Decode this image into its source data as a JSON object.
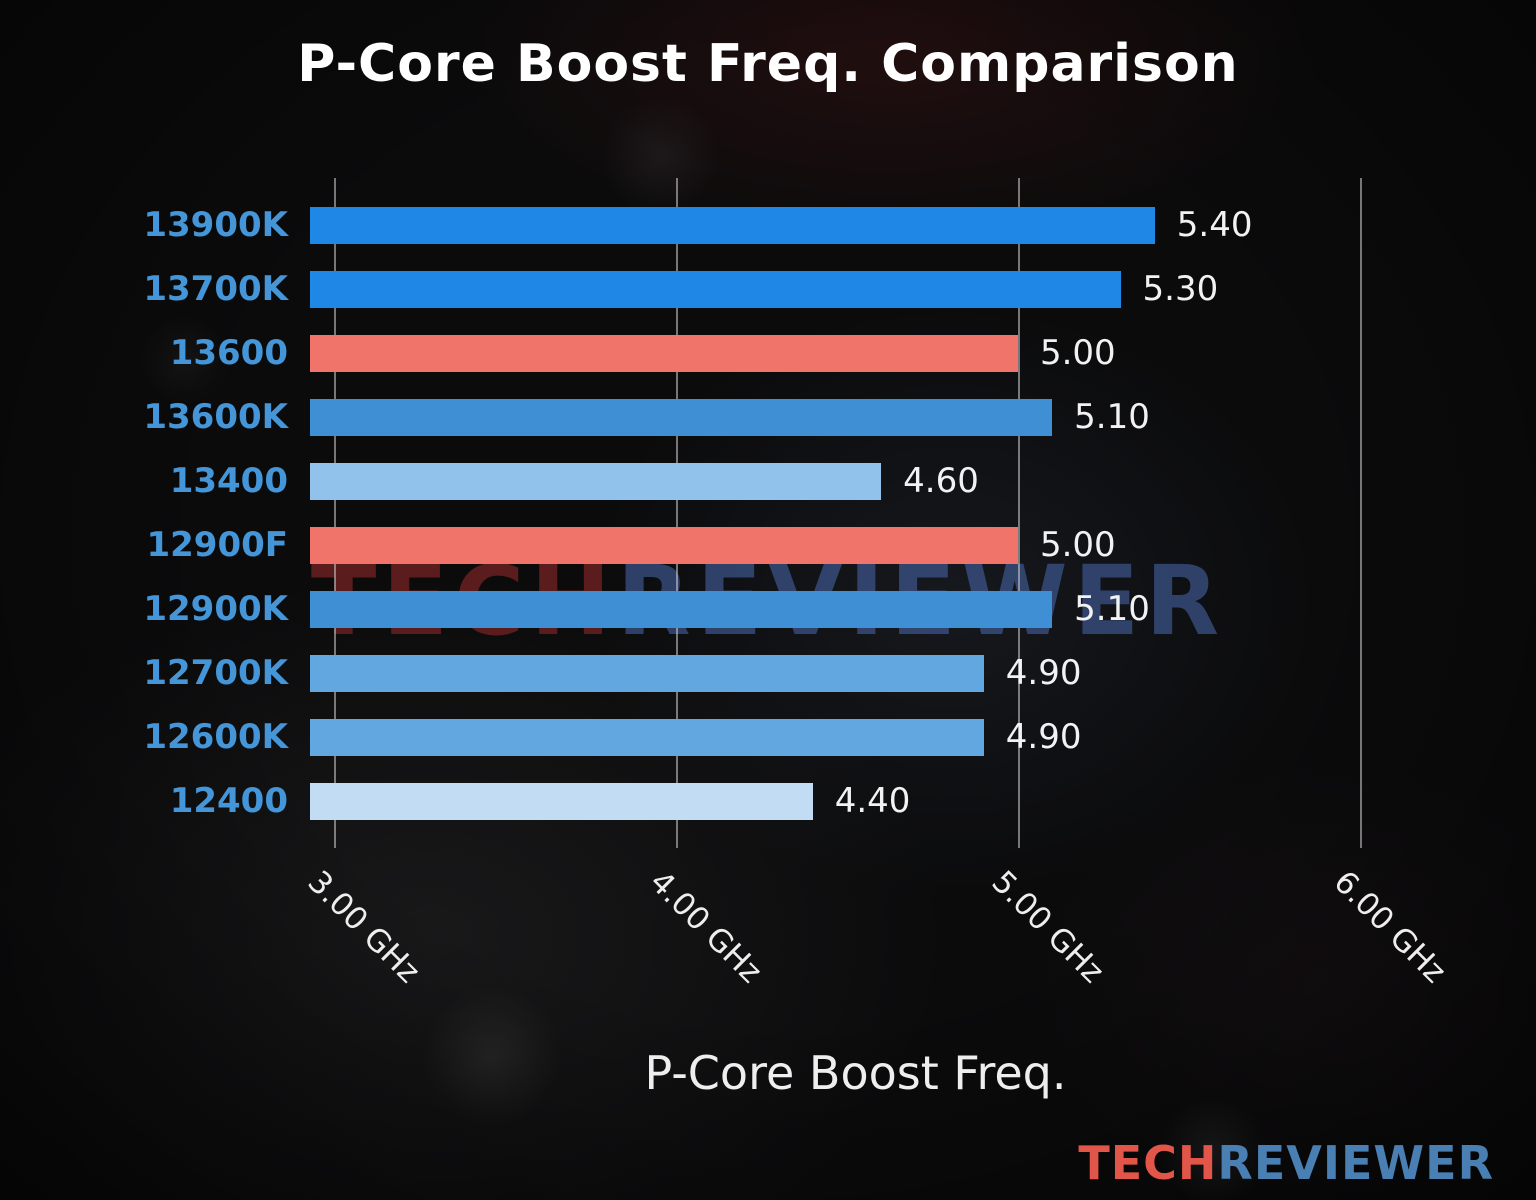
{
  "page": {
    "title": "P-Core Boost Freq. Comparison",
    "xlabel": "P-Core Boost Freq."
  },
  "watermark": {
    "tech": "TECH",
    "reviewer": "REVIEWER"
  },
  "logo": {
    "tech": "TECH",
    "reviewer": "REVIEWER"
  },
  "colors": {
    "title_text": "#ffffff",
    "value_text": "#f2f2f2",
    "tick_text": "#eeeeee",
    "category_text": "#4496d8",
    "grid_line": "#d2d2d2",
    "logo_tech": "#e2564a",
    "logo_reviewer": "#4a7fb3",
    "watermark_tech": "#9c2a2a",
    "watermark_reviewer": "#4a6ab0"
  },
  "chart_data": {
    "type": "bar",
    "orientation": "horizontal",
    "title": "P-Core Boost Freq. Comparison",
    "xlabel": "P-Core Boost Freq.",
    "categories": [
      "13900K",
      "13700K",
      "13600",
      "13600K",
      "13400",
      "12900F",
      "12900K",
      "12700K",
      "12600K",
      "12400"
    ],
    "values": [
      5.4,
      5.3,
      5.0,
      5.1,
      4.6,
      5.0,
      5.1,
      4.9,
      4.9,
      4.4
    ],
    "value_labels": [
      "5.40",
      "5.30",
      "5.00",
      "5.10",
      "4.60",
      "5.00",
      "5.10",
      "4.90",
      "4.90",
      "4.40"
    ],
    "bar_colors": [
      "#1f87e5",
      "#1f87e5",
      "#f0746a",
      "#3f8fd5",
      "#90c2ec",
      "#f0746a",
      "#3f8fd5",
      "#63a7e0",
      "#63a7e0",
      "#c2dcf4"
    ],
    "axis": {
      "min": 2.93,
      "max": 6.12,
      "ticks": [
        3.0,
        4.0,
        5.0,
        6.0
      ],
      "tick_labels": [
        "3.00 GHz",
        "4.00 GHz",
        "5.00 GHz",
        "6.00 GHz"
      ]
    },
    "grid": true,
    "legend": false
  }
}
